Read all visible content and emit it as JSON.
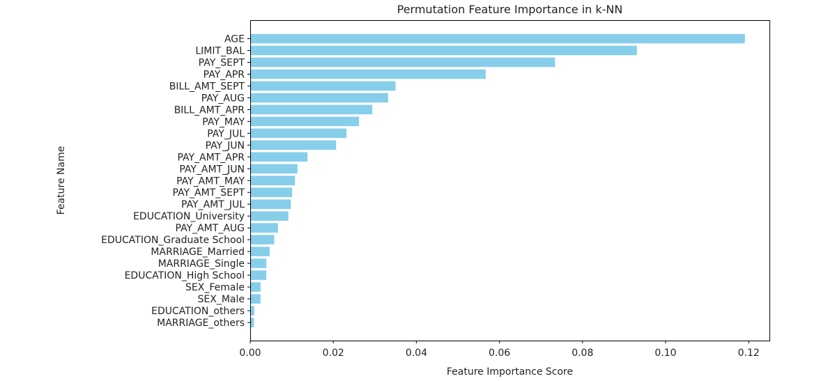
{
  "chart_data": {
    "type": "bar",
    "orientation": "horizontal",
    "title": "Permutation Feature Importance in k-NN",
    "xlabel": "Feature Importance Score",
    "ylabel": "Feature Name",
    "categories": [
      "AGE",
      "LIMIT_BAL",
      "PAY_SEPT",
      "PAY_APR",
      "BILL_AMT_SEPT",
      "PAY_AUG",
      "BILL_AMT_APR",
      "PAY_MAY",
      "PAY_JUL",
      "PAY_JUN",
      "PAY_AMT_APR",
      "PAY_AMT_JUN",
      "PAY_AMT_MAY",
      "PAY_AMT_SEPT",
      "PAY_AMT_JUL",
      "EDUCATION_University",
      "PAY_AMT_AUG",
      "EDUCATION_Graduate School",
      "MARRIAGE_Married",
      "MARRIAGE_Single",
      "EDUCATION_High School",
      "SEX_Female",
      "SEX_Male",
      "EDUCATION_others",
      "MARRIAGE_others"
    ],
    "values": [
      0.119,
      0.093,
      0.0733,
      0.0566,
      0.0349,
      0.0331,
      0.0293,
      0.0261,
      0.0231,
      0.0206,
      0.0137,
      0.0113,
      0.0107,
      0.01,
      0.0097,
      0.0091,
      0.0066,
      0.0057,
      0.0046,
      0.0038,
      0.0038,
      0.0024,
      0.0024,
      0.0009,
      0.0008
    ],
    "xlim": [
      0,
      0.125
    ],
    "xticks": [
      0.0,
      0.02,
      0.04,
      0.06,
      0.08,
      0.1,
      0.12
    ],
    "xtick_labels": [
      "0.00",
      "0.02",
      "0.04",
      "0.06",
      "0.08",
      "0.10",
      "0.12"
    ],
    "bar_color": "#87ceeb",
    "grid": false
  }
}
